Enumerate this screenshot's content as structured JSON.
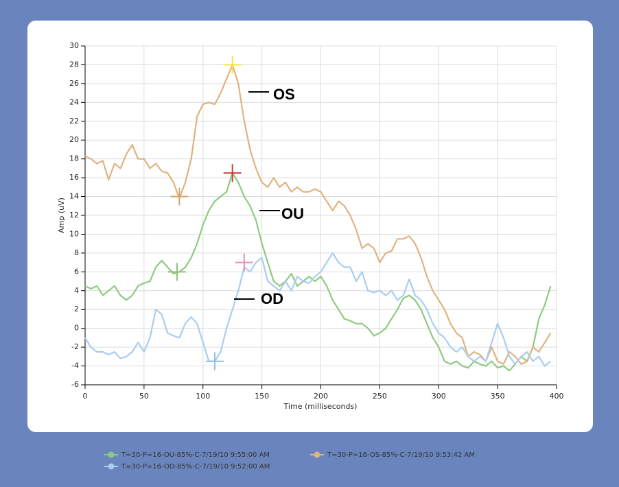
{
  "chart_data": {
    "type": "line",
    "xlabel": "Time (milliseconds)",
    "ylabel": "Amp (uV)",
    "x": [
      0,
      5,
      10,
      15,
      20,
      25,
      30,
      35,
      40,
      45,
      50,
      55,
      60,
      65,
      70,
      75,
      80,
      85,
      90,
      95,
      100,
      105,
      110,
      115,
      120,
      125,
      130,
      135,
      140,
      145,
      150,
      155,
      160,
      165,
      170,
      175,
      180,
      185,
      190,
      195,
      200,
      205,
      210,
      215,
      220,
      225,
      230,
      235,
      240,
      245,
      250,
      255,
      260,
      265,
      270,
      275,
      280,
      285,
      290,
      295,
      300,
      305,
      310,
      315,
      320,
      325,
      330,
      335,
      340,
      345,
      350,
      355,
      360,
      365,
      370,
      375,
      380,
      385,
      390,
      395
    ],
    "series": [
      {
        "name": "T=30-P=16-OU-85%-C-7/19/10 9:55:00 AM",
        "color": "#8fca7f",
        "values": [
          4.5,
          4.2,
          4.5,
          3.5,
          4,
          4.5,
          3.5,
          3,
          3.5,
          4.5,
          4.8,
          5,
          6.5,
          7.2,
          6.5,
          5.8,
          6,
          6.5,
          7.5,
          9,
          11,
          12.5,
          13.5,
          14,
          14.5,
          16.5,
          15.5,
          14,
          13,
          11.5,
          9,
          7,
          5,
          4.5,
          5,
          5.8,
          4.5,
          5,
          5.5,
          5,
          5.5,
          4.5,
          3,
          2,
          1,
          0.8,
          0.5,
          0.5,
          0,
          -0.8,
          -0.5,
          0,
          1,
          2,
          3.2,
          3.5,
          3,
          2,
          0.5,
          -1,
          -2,
          -3.5,
          -3.8,
          -3.5,
          -4,
          -4.2,
          -3.5,
          -3.8,
          -4,
          -3.5,
          -4.2,
          -4,
          -4.5,
          -3.8,
          -3,
          -3.5,
          -2,
          1,
          2.5,
          4.5
        ]
      },
      {
        "name": "T=30-P=16-OS-85%-C-7/19/10 9:53:42 AM",
        "color": "#e0b27f",
        "values": [
          18.3,
          18,
          17.5,
          17.8,
          15.8,
          17.5,
          17,
          18.5,
          19.5,
          18,
          18,
          17,
          17.5,
          16.7,
          16.5,
          15.5,
          13.8,
          15.5,
          18,
          22.5,
          23.8,
          24,
          23.8,
          25,
          26.5,
          28,
          26,
          22,
          19,
          17,
          15.5,
          15,
          16,
          15,
          15.5,
          14.5,
          15,
          14.5,
          14.5,
          14.8,
          14.5,
          13.5,
          12.5,
          13.5,
          13,
          12,
          10.5,
          8.5,
          9,
          8.5,
          7,
          8,
          8.2,
          9.5,
          9.5,
          9.8,
          9,
          7.5,
          5.5,
          4,
          3,
          2,
          0.5,
          -0.5,
          -1,
          -3,
          -2.5,
          -2.8,
          -3.5,
          -2,
          -3.5,
          -3.8,
          -2.5,
          -3,
          -3.8,
          -3.5,
          -2,
          -2.5,
          -1.5,
          -0.5
        ]
      },
      {
        "name": "T=30-P=16-OD-85%-C-7/19/10 9:52:00 AM",
        "color": "#a9cdf0",
        "values": [
          -1,
          -2,
          -2.5,
          -2.5,
          -2.8,
          -2.5,
          -3.2,
          -3,
          -2.5,
          -1.5,
          -2.5,
          -1,
          2,
          1.5,
          -0.5,
          -0.8,
          -1,
          0.5,
          1.2,
          0.5,
          -1.5,
          -3.5,
          -3.5,
          -2.5,
          0,
          2,
          4,
          6.5,
          6,
          7,
          7.5,
          5,
          4.5,
          4,
          5,
          4,
          5.5,
          5,
          4.8,
          5.5,
          6,
          7,
          8,
          7,
          6.5,
          6.5,
          5,
          6,
          4,
          3.8,
          4,
          3.5,
          4,
          3,
          3.5,
          5.2,
          3.5,
          3,
          2,
          0.5,
          -0.5,
          -1,
          -2,
          -2.5,
          -2,
          -3,
          -3.5,
          -3,
          -3.5,
          -1.5,
          0.5,
          -1,
          -3,
          -3.8,
          -3,
          -2.5,
          -3.5,
          -3,
          -4,
          -3.5
        ]
      }
    ],
    "markers": [
      {
        "x": 125,
        "y": 28,
        "color": "#f5e642"
      },
      {
        "x": 125,
        "y": 16.5,
        "color": "#c83a3a"
      },
      {
        "x": 135,
        "y": 7,
        "color": "#e88ac0"
      },
      {
        "x": 80,
        "y": 14,
        "color": "#d9a46e"
      },
      {
        "x": 78,
        "y": 6,
        "color": "#8cc47a"
      },
      {
        "x": 110,
        "y": -3.5,
        "color": "#8fbde8"
      }
    ],
    "annotations": [
      {
        "text": "OS"
      },
      {
        "text": "OU"
      },
      {
        "text": "OD"
      }
    ],
    "xlim": [
      0,
      400
    ],
    "xticks": [
      0,
      50,
      100,
      150,
      200,
      250,
      300,
      350,
      400
    ],
    "ylim": [
      -6,
      30
    ],
    "yticks": [
      -6,
      -4,
      -2,
      0,
      2,
      4,
      6,
      8,
      10,
      12,
      14,
      16,
      18,
      20,
      22,
      24,
      26,
      28,
      30
    ],
    "grid": true
  }
}
